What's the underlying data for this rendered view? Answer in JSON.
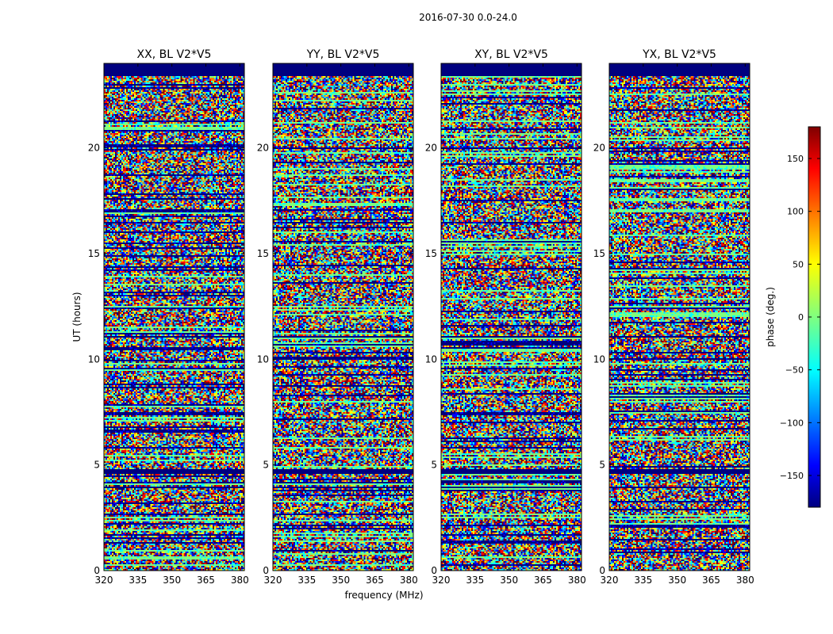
{
  "figure": {
    "suptitle": "2016-07-30 0.0-24.0"
  },
  "chart_data": {
    "type": "heatmap",
    "xlabel": "frequency (MHz)",
    "ylabel": "UT (hours)",
    "xlim": [
      320,
      382
    ],
    "ylim": [
      0,
      24
    ],
    "xticks": [
      320,
      335,
      350,
      365,
      380
    ],
    "yticks": [
      0,
      5,
      10,
      15,
      20
    ],
    "panels": [
      {
        "title": "XX, BL V2*V5"
      },
      {
        "title": "YY, BL V2*V5"
      },
      {
        "title": "XY, BL V2*V5"
      },
      {
        "title": "YX, BL V2*V5"
      }
    ],
    "colorbar": {
      "label": "phase (deg.)",
      "range": [
        -180,
        180
      ],
      "ticks": [
        -150,
        -100,
        -50,
        0,
        50,
        100,
        150
      ],
      "tick_labels": [
        "−150",
        "−100",
        "−50",
        "0",
        "50",
        "100",
        "150"
      ],
      "colormap": [
        "#00007f",
        "#0000ff",
        "#007fff",
        "#00ffff",
        "#7fff7f",
        "#ffff00",
        "#ff7f00",
        "#ff0000",
        "#7f0000"
      ]
    },
    "flagged_bands_hours": [
      [
        23.4,
        24.0
      ],
      [
        11.0,
        11.1
      ],
      [
        4.6,
        4.8
      ],
      [
        3.9,
        4.0
      ]
    ]
  }
}
